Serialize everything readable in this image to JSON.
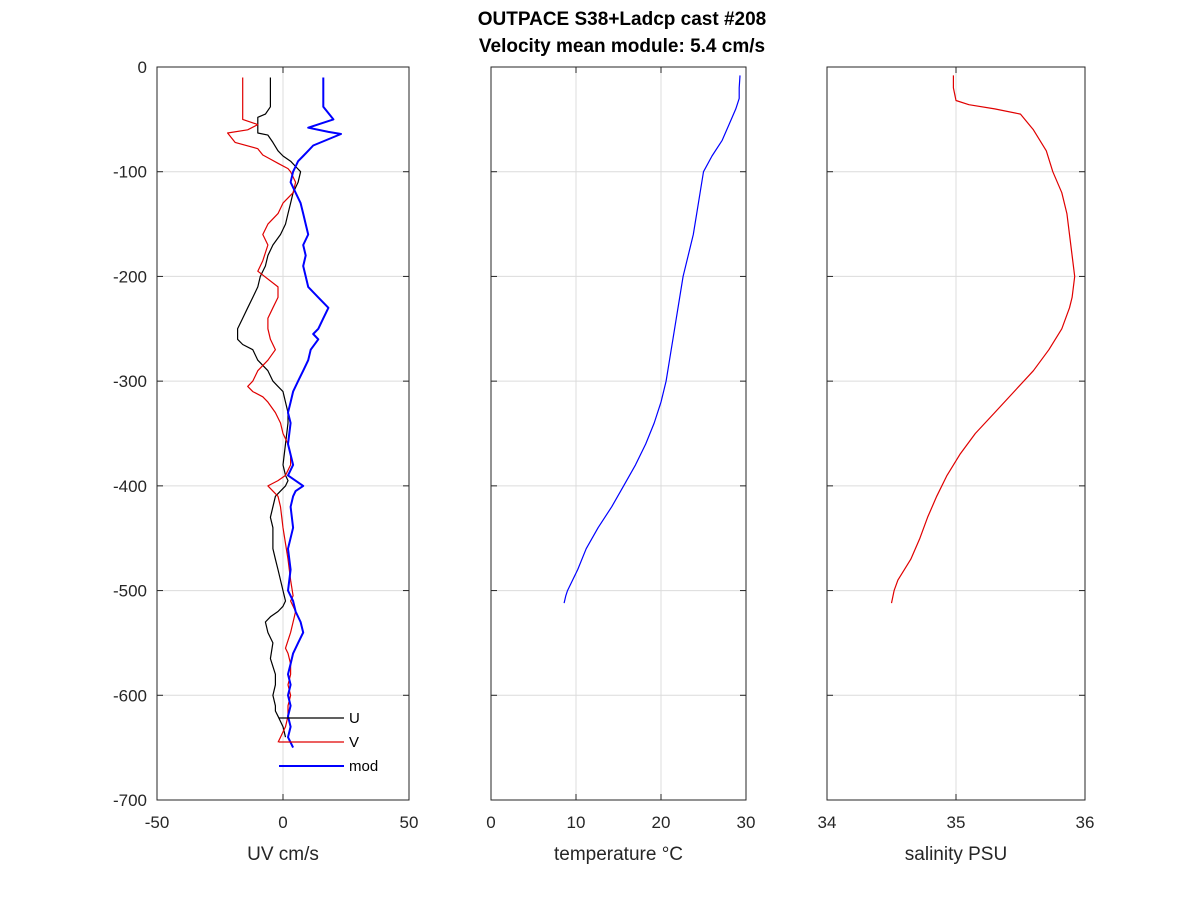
{
  "figure": {
    "title_line1": "OUTPACE S38+Ladcp cast #208",
    "title_line2": "Velocity mean module:  5.4 cm/s"
  },
  "colors": {
    "U": "#000000",
    "V": "#e00000",
    "mod": "#0000ff",
    "temperature": "#0000ff",
    "salinity": "#e00000"
  },
  "chart_data": [
    {
      "type": "line",
      "xlabel": "UV cm/s",
      "ylabel": "",
      "xlim": [
        -50,
        50
      ],
      "ylim": [
        -700,
        0
      ],
      "xticks": [
        -50,
        0,
        50
      ],
      "yticks": [
        0,
        -100,
        -200,
        -300,
        -400,
        -500,
        -600,
        -700
      ],
      "grid": true,
      "legend": {
        "placement": "bottom-right",
        "entries": [
          "U",
          "V",
          "mod"
        ]
      },
      "series": [
        {
          "name": "U",
          "color": "#000000",
          "width": 1.2,
          "x": [
            -5,
            -5,
            -7,
            -10,
            -10,
            -6,
            -4,
            -2,
            0,
            3,
            5,
            7,
            6,
            4,
            3,
            2,
            1,
            -1,
            -4,
            -6,
            -7,
            -9,
            -10,
            -12,
            -14,
            -16,
            -18,
            -18,
            -16,
            -12,
            -10,
            -6,
            -4,
            -2,
            0,
            1,
            2,
            2,
            1,
            0,
            1,
            2,
            1,
            -1,
            -3,
            -4,
            -5,
            -4,
            -4,
            -3,
            -2,
            -1,
            0,
            1,
            0,
            -2,
            -5,
            -7,
            -6,
            -4,
            -5,
            -3,
            -3,
            -4,
            -3,
            -3,
            -2,
            0,
            1
          ],
          "y": [
            -10,
            -38,
            -45,
            -48,
            -63,
            -65,
            -72,
            -80,
            -85,
            -90,
            -95,
            -100,
            -110,
            -120,
            -130,
            -140,
            -150,
            -160,
            -170,
            -180,
            -190,
            -200,
            -210,
            -220,
            -230,
            -240,
            -250,
            -260,
            -265,
            -270,
            -280,
            -290,
            -300,
            -305,
            -310,
            -320,
            -330,
            -340,
            -360,
            -380,
            -390,
            -395,
            -400,
            -405,
            -410,
            -420,
            -430,
            -440,
            -460,
            -470,
            -480,
            -490,
            -500,
            -510,
            -515,
            -520,
            -525,
            -530,
            -540,
            -550,
            -565,
            -580,
            -590,
            -600,
            -610,
            -615,
            -620,
            -630,
            -640
          ]
        },
        {
          "name": "V",
          "color": "#e00000",
          "width": 1.2,
          "x": [
            -16,
            -16,
            -10,
            -14,
            -22,
            -19,
            -10,
            -8,
            -5,
            -2,
            2,
            3,
            5,
            4,
            0,
            -2,
            -6,
            -8,
            -6,
            -8,
            -10,
            -2,
            -2,
            -4,
            -6,
            -6,
            -5,
            -3,
            -6,
            -10,
            -12,
            -14,
            -12,
            -8,
            -6,
            -3,
            -1,
            0,
            2,
            3,
            3,
            1,
            -2,
            -6,
            -4,
            -2,
            -1,
            0,
            1,
            2,
            3,
            4,
            3,
            5,
            3,
            1,
            2,
            3,
            3,
            2,
            3,
            2,
            2,
            1,
            0,
            -1,
            -2
          ],
          "y": [
            -10,
            -50,
            -55,
            -60,
            -63,
            -72,
            -78,
            -84,
            -88,
            -92,
            -97,
            -100,
            -110,
            -120,
            -130,
            -140,
            -150,
            -160,
            -170,
            -185,
            -195,
            -210,
            -220,
            -230,
            -240,
            -250,
            -260,
            -270,
            -280,
            -290,
            -300,
            -305,
            -310,
            -315,
            -320,
            -330,
            -340,
            -350,
            -360,
            -370,
            -380,
            -390,
            -395,
            -400,
            -405,
            -410,
            -420,
            -440,
            -455,
            -470,
            -490,
            -505,
            -510,
            -520,
            -540,
            -555,
            -560,
            -570,
            -580,
            -590,
            -600,
            -610,
            -620,
            -630,
            -635,
            -640,
            -645
          ]
        },
        {
          "name": "mod",
          "color": "#0000ff",
          "width": 2.0,
          "x": [
            16,
            16,
            20,
            10,
            18,
            23,
            12,
            10,
            8,
            6,
            5,
            4,
            3,
            5,
            7,
            8,
            9,
            10,
            8,
            9,
            8,
            9,
            10,
            14,
            18,
            16,
            14,
            12,
            14,
            11,
            10,
            8,
            6,
            4,
            3,
            2,
            3,
            2,
            4,
            2,
            8,
            5,
            4,
            3,
            4,
            2,
            3,
            2,
            4,
            5,
            7,
            8,
            6,
            4,
            3,
            2,
            3,
            2,
            3,
            2,
            3,
            2,
            3,
            4
          ],
          "y": [
            -10,
            -38,
            -50,
            -58,
            -62,
            -64,
            -75,
            -80,
            -85,
            -90,
            -95,
            -100,
            -110,
            -120,
            -130,
            -140,
            -150,
            -160,
            -170,
            -180,
            -190,
            -200,
            -210,
            -220,
            -230,
            -240,
            -250,
            -255,
            -260,
            -270,
            -280,
            -290,
            -300,
            -310,
            -320,
            -330,
            -340,
            -360,
            -380,
            -390,
            -400,
            -405,
            -410,
            -420,
            -440,
            -460,
            -480,
            -500,
            -510,
            -520,
            -530,
            -540,
            -550,
            -560,
            -570,
            -580,
            -590,
            -600,
            -610,
            -620,
            -630,
            -640,
            -645,
            -650
          ]
        }
      ]
    },
    {
      "type": "line",
      "xlabel": "temperature °C",
      "ylabel": "",
      "xlim": [
        0,
        30
      ],
      "ylim": [
        -700,
        0
      ],
      "xticks": [
        0,
        10,
        20,
        30
      ],
      "yticks": [
        0,
        -100,
        -200,
        -300,
        -400,
        -500,
        -600,
        -700
      ],
      "grid": true,
      "series": [
        {
          "name": "",
          "color": "#0000ff",
          "width": 1.2,
          "x": [
            29.3,
            29.2,
            29.2,
            28.8,
            28,
            27.2,
            26,
            25,
            24.6,
            24.2,
            23.8,
            23.2,
            22.6,
            22.2,
            21.8,
            21.4,
            21.2,
            21,
            20.6,
            20,
            19.2,
            18.2,
            17,
            15.6,
            14.2,
            12.6,
            11.2,
            10.2,
            9.6,
            9,
            8.8,
            8.6
          ],
          "y": [
            -8,
            -20,
            -30,
            -40,
            -55,
            -70,
            -85,
            -100,
            -120,
            -140,
            -160,
            -180,
            -200,
            -220,
            -240,
            -260,
            -270,
            -280,
            -300,
            -320,
            -340,
            -360,
            -380,
            -400,
            -420,
            -440,
            -460,
            -480,
            -490,
            -500,
            -505,
            -512
          ]
        }
      ]
    },
    {
      "type": "line",
      "xlabel": "salinity PSU",
      "ylabel": "",
      "xlim": [
        34,
        36
      ],
      "ylim": [
        -700,
        0
      ],
      "xticks": [
        34,
        35,
        36
      ],
      "yticks": [
        0,
        -100,
        -200,
        -300,
        -400,
        -500,
        -600,
        -700
      ],
      "grid": true,
      "series": [
        {
          "name": "",
          "color": "#e00000",
          "width": 1.2,
          "x": [
            34.98,
            34.98,
            35.0,
            35.1,
            35.3,
            35.5,
            35.6,
            35.7,
            35.75,
            35.82,
            35.86,
            35.88,
            35.9,
            35.92,
            35.9,
            35.88,
            35.82,
            35.72,
            35.6,
            35.45,
            35.3,
            35.15,
            35.03,
            34.93,
            34.85,
            34.78,
            34.72,
            34.65,
            34.6,
            34.55,
            34.52,
            34.5
          ],
          "y": [
            -8,
            -20,
            -32,
            -36,
            -40,
            -45,
            -60,
            -80,
            -100,
            -120,
            -140,
            -160,
            -180,
            -200,
            -220,
            -230,
            -250,
            -270,
            -290,
            -310,
            -330,
            -350,
            -370,
            -390,
            -410,
            -430,
            -450,
            -470,
            -480,
            -490,
            -500,
            -512
          ]
        }
      ]
    }
  ]
}
